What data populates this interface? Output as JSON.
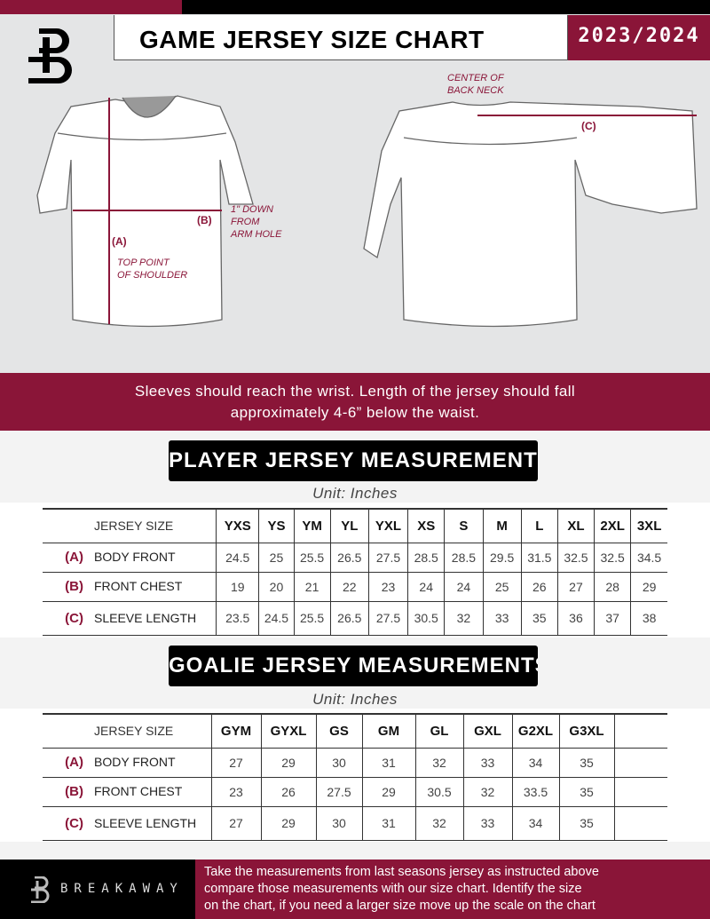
{
  "header": {
    "title": "GAME JERSEY SIZE CHART",
    "season": "2023/2024"
  },
  "colors": {
    "accent": "#8a1538",
    "dark": "#000000"
  },
  "diagram": {
    "center_back_neck": [
      "CENTER OF",
      "BACK NECK"
    ],
    "arm_hole": [
      "1\" DOWN",
      "FROM",
      "ARM HOLE"
    ],
    "shoulder": [
      "TOP POINT",
      "OF SHOULDER"
    ],
    "label_a": "(A)",
    "label_b": "(B)",
    "label_c": "(C)"
  },
  "banner": {
    "line1": "Sleeves should reach the wrist. Length of the jersey should fall",
    "line2": "approximately 4-6” below the waist."
  },
  "player": {
    "title": "PLAYER JERSEY MEASUREMENTS",
    "unit": "Unit: Inches",
    "header_label": "JERSEY SIZE",
    "sizes": [
      "YXS",
      "YS",
      "YM",
      "YL",
      "YXL",
      "XS",
      "S",
      "M",
      "L",
      "XL",
      "2XL",
      "3XL"
    ],
    "rows": [
      {
        "code": "(A)",
        "label": "BODY FRONT",
        "values": [
          "24.5",
          "25",
          "25.5",
          "26.5",
          "27.5",
          "28.5",
          "28.5",
          "29.5",
          "31.5",
          "32.5",
          "32.5",
          "34.5"
        ]
      },
      {
        "code": "(B)",
        "label": "FRONT CHEST",
        "values": [
          "19",
          "20",
          "21",
          "22",
          "23",
          "24",
          "24",
          "25",
          "26",
          "27",
          "28",
          "29"
        ]
      },
      {
        "code": "(C)",
        "label": "SLEEVE LENGTH",
        "values": [
          "23.5",
          "24.5",
          "25.5",
          "26.5",
          "27.5",
          "30.5",
          "32",
          "33",
          "35",
          "36",
          "37",
          "38"
        ]
      }
    ]
  },
  "goalie": {
    "title": "GOALIE JERSEY MEASUREMENTS",
    "unit": "Unit: Inches",
    "header_label": "JERSEY SIZE",
    "sizes": [
      "GYM",
      "GYXL",
      "GS",
      "GM",
      "GL",
      "GXL",
      "G2XL",
      "G3XL",
      ""
    ],
    "rows": [
      {
        "code": "(A)",
        "label": "BODY FRONT",
        "values": [
          "27",
          "29",
          "30",
          "31",
          "32",
          "33",
          "34",
          "35",
          ""
        ]
      },
      {
        "code": "(B)",
        "label": "FRONT CHEST",
        "values": [
          "23",
          "26",
          "27.5",
          "29",
          "30.5",
          "32",
          "33.5",
          "35",
          ""
        ]
      },
      {
        "code": "(C)",
        "label": "SLEEVE LENGTH",
        "values": [
          "27",
          "29",
          "30",
          "31",
          "32",
          "33",
          "34",
          "35",
          ""
        ]
      }
    ]
  },
  "footer": {
    "brand": "BREAKAWAY",
    "text": [
      "Take the measurements from last seasons jersey as instructed above",
      "compare those measurements  with our size chart. Identify the size",
      "on the chart, if you need a larger size move up the scale on the chart"
    ]
  }
}
